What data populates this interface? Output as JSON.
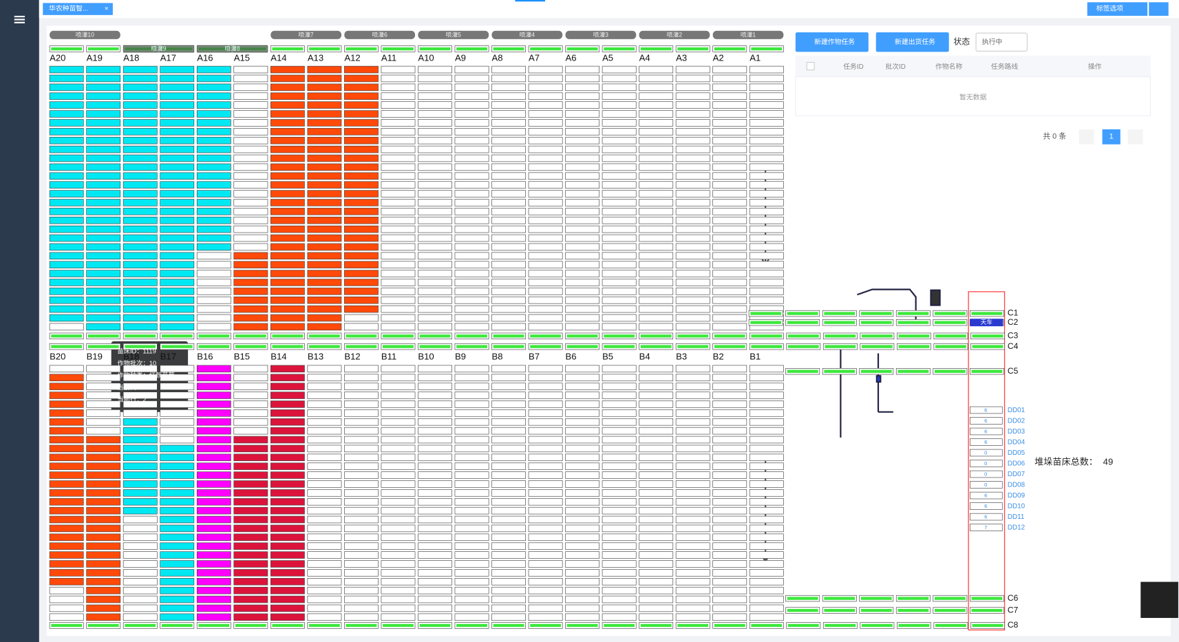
{
  "tab": "华农种苗智...",
  "tab_options": "标签选项",
  "spray_lanes": [
    {
      "label": "喷灌10",
      "col": 0
    },
    {
      "label": "喷灌9",
      "col": 2,
      "active": true
    },
    {
      "label": "喷灌8",
      "col": 4,
      "active": true
    },
    {
      "label": "喷灌7",
      "col": 6
    },
    {
      "label": "喷灌6",
      "col": 8
    },
    {
      "label": "喷灌5",
      "col": 10
    },
    {
      "label": "喷灌4",
      "col": 12
    },
    {
      "label": "喷灌3",
      "col": 14
    },
    {
      "label": "喷灌2",
      "col": 16
    },
    {
      "label": "喷灌1",
      "col": 18
    }
  ],
  "upper": {
    "row_count": 30,
    "columns": [
      {
        "label": "A20",
        "color": "#00e8f2",
        "fill": [
          0,
          28
        ]
      },
      {
        "label": "A19",
        "color": "#00e8f2",
        "fill": [
          0,
          29
        ]
      },
      {
        "label": "A18",
        "color": "#00e8f2",
        "fill": [
          0,
          29
        ]
      },
      {
        "label": "A17",
        "color": "#00e8f2",
        "fill": [
          0,
          29
        ]
      },
      {
        "label": "A16",
        "color": "#00e8f2",
        "fill": [
          0,
          20
        ]
      },
      {
        "label": "A15",
        "color": "#ff4a0a",
        "fill": [
          21,
          29
        ]
      },
      {
        "label": "A14",
        "color": "#ff4a0a",
        "fill": [
          0,
          29
        ]
      },
      {
        "label": "A13",
        "color": "#ff4a0a",
        "fill": [
          0,
          29
        ]
      },
      {
        "label": "A12",
        "color": "#ff4a0a",
        "fill": [
          0,
          27
        ]
      },
      {
        "label": "A11"
      },
      {
        "label": "A10"
      },
      {
        "label": "A9"
      },
      {
        "label": "A8"
      },
      {
        "label": "A7"
      },
      {
        "label": "A6"
      },
      {
        "label": "A5"
      },
      {
        "label": "A4"
      },
      {
        "label": "A3"
      },
      {
        "label": "A2"
      },
      {
        "label": "A1"
      }
    ]
  },
  "lower": {
    "row_count": 29,
    "columns": [
      {
        "label": "B20",
        "color": "#ff4a0a",
        "fill": [
          1,
          24
        ]
      },
      {
        "label": "B19",
        "color": "#ff4a0a",
        "fill": [
          8,
          28
        ]
      },
      {
        "label": "B18",
        "color": "#00e8f2",
        "fill": [
          6,
          16
        ]
      },
      {
        "label": "B17",
        "color": "#00e8f2",
        "fill": [
          9,
          28
        ]
      },
      {
        "label": "B16",
        "color": "#ff00ff",
        "fill": [
          0,
          28
        ]
      },
      {
        "label": "B15",
        "color": "#dc143c",
        "fill": [
          8,
          28
        ]
      },
      {
        "label": "B14",
        "color": "#dc143c",
        "fill": [
          0,
          28
        ]
      },
      {
        "label": "B13"
      },
      {
        "label": "B12"
      },
      {
        "label": "B11"
      },
      {
        "label": "B10"
      },
      {
        "label": "B9"
      },
      {
        "label": "B8"
      },
      {
        "label": "B7"
      },
      {
        "label": "B6"
      },
      {
        "label": "B5"
      },
      {
        "label": "B4"
      },
      {
        "label": "B3"
      },
      {
        "label": "B2"
      },
      {
        "label": "B1"
      }
    ]
  },
  "c_rows": [
    "C1",
    "C2",
    "C3",
    "C4",
    "C5",
    "C6",
    "C7",
    "C8"
  ],
  "crane": "天车",
  "dd": {
    "labels": [
      "DD01",
      "DD02",
      "DD03",
      "DD04",
      "DD05",
      "DD06",
      "DD07",
      "DD08",
      "DD09",
      "DD10",
      "DD11",
      "DD12"
    ],
    "values": [
      6,
      6,
      6,
      6,
      0,
      0,
      0,
      0,
      6,
      6,
      6,
      7
    ]
  },
  "stack_total": {
    "label": "堆垛苗床总数：",
    "value": 49
  },
  "tooltip": [
    "苗床ID：1119",
    "作物批次：10",
    "作物种类：红颜草莓",
    "当前列：B16",
    "当前行：2"
  ],
  "buttons": [
    "新建作物任务",
    "新建出货任务"
  ],
  "status": {
    "label": "状态",
    "value": "执行中"
  },
  "table": {
    "headers": [
      "任务ID",
      "批次ID",
      "作物名称",
      "任务路线",
      "操作"
    ],
    "empty": "暂无数据"
  },
  "pagination": {
    "total": "共 0 条",
    "current": 1
  }
}
